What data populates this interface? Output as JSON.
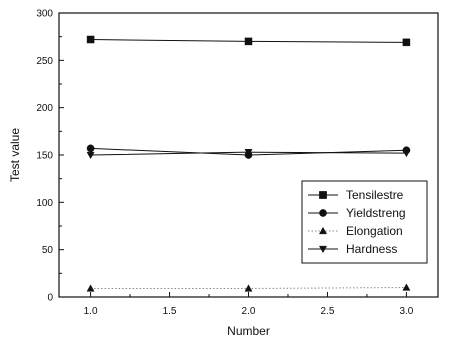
{
  "chart_data": {
    "type": "line",
    "title": "",
    "xlabel": "Number",
    "ylabel": "Test value",
    "xlim": [
      0.8,
      3.2
    ],
    "ylim": [
      0,
      300
    ],
    "xticks": [
      "1.0",
      "1.5",
      "2.0",
      "2.5",
      "3.0"
    ],
    "yticks": [
      "0",
      "50",
      "100",
      "150",
      "200",
      "250",
      "300"
    ],
    "grid": false,
    "legend_position": "bottom-right",
    "x": [
      1.0,
      2.0,
      3.0
    ],
    "series": [
      {
        "name": "Tensilestre",
        "marker": "square",
        "line_style": "solid",
        "values": [
          272,
          270,
          269
        ]
      },
      {
        "name": "Yieldstreng",
        "marker": "circle",
        "line_style": "solid",
        "values": [
          157,
          150,
          155
        ]
      },
      {
        "name": "Elongation",
        "marker": "triangle-up",
        "line_style": "dotted",
        "values": [
          9,
          9,
          10
        ]
      },
      {
        "name": "Hardness",
        "marker": "triangle-down",
        "line_style": "solid",
        "values": [
          150,
          153,
          152
        ]
      }
    ]
  }
}
